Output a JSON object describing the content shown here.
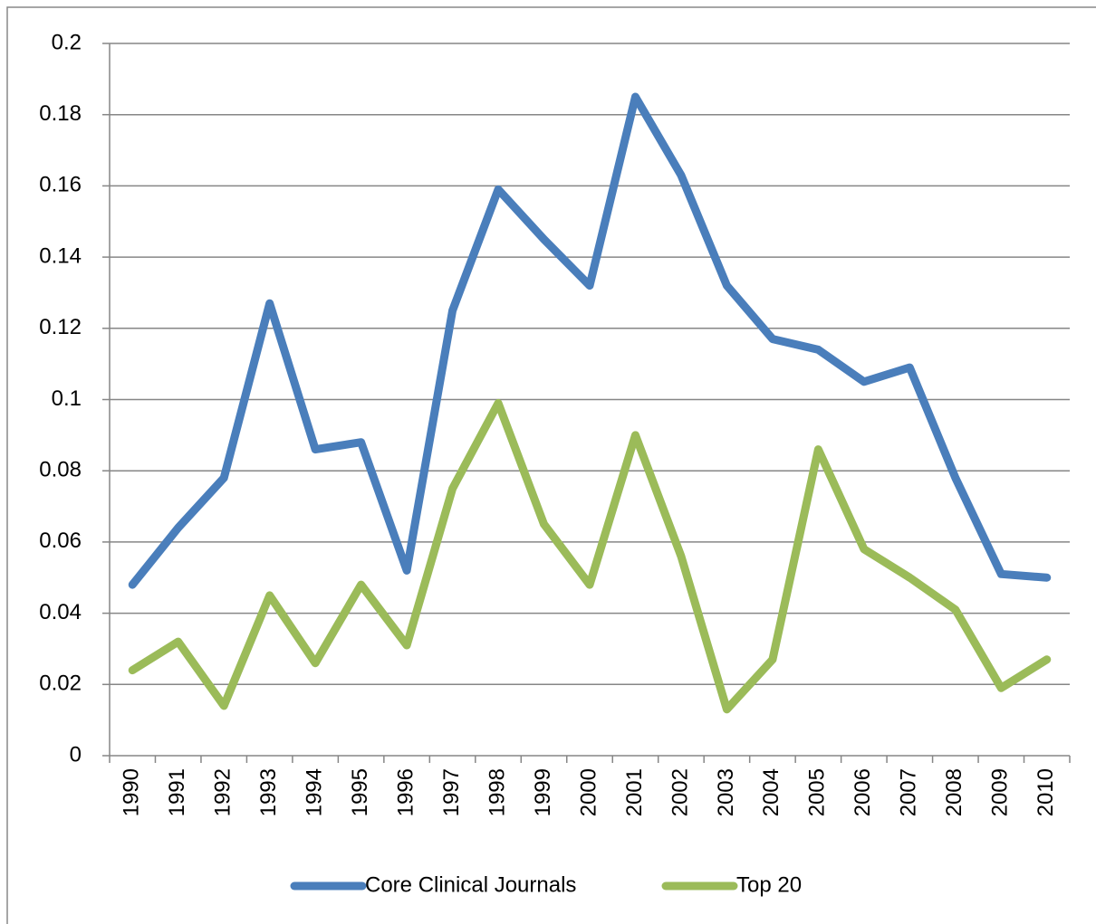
{
  "chart_data": {
    "type": "line",
    "categories": [
      "1990",
      "1991",
      "1992",
      "1993",
      "1994",
      "1995",
      "1996",
      "1997",
      "1998",
      "1999",
      "2000",
      "2001",
      "2002",
      "2003",
      "2004",
      "2005",
      "2006",
      "2007",
      "2008",
      "2009",
      "2010"
    ],
    "series": [
      {
        "name": "Core Clinical Journals",
        "color": "#4a7ebb",
        "values": [
          0.048,
          0.064,
          0.078,
          0.127,
          0.086,
          0.088,
          0.052,
          0.125,
          0.159,
          0.145,
          0.132,
          0.185,
          0.163,
          0.132,
          0.117,
          0.114,
          0.105,
          0.109,
          0.078,
          0.051,
          0.05
        ]
      },
      {
        "name": "Top 20",
        "color": "#9bbb59",
        "values": [
          0.024,
          0.032,
          0.014,
          0.045,
          0.026,
          0.048,
          0.031,
          0.075,
          0.099,
          0.065,
          0.048,
          0.09,
          0.056,
          0.013,
          0.027,
          0.086,
          0.058,
          0.05,
          0.041,
          0.019,
          0.027
        ]
      }
    ],
    "ylim": [
      0,
      0.2
    ],
    "yticks": [
      0,
      0.02,
      0.04,
      0.06,
      0.08,
      0.1,
      0.12,
      0.14,
      0.16,
      0.18,
      0.2
    ],
    "grid": true,
    "legend": "bottom"
  }
}
